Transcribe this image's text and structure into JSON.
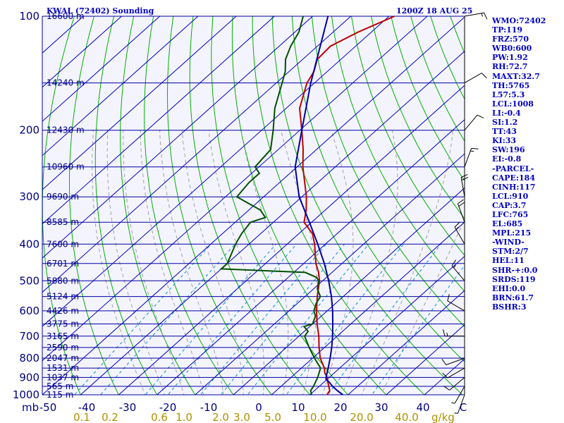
{
  "header": {
    "station": "KWAL (72402) Sounding",
    "time": "1200Z 18 AUG 25"
  },
  "indices": [
    "WMO:72402",
    "TP:119",
    "FRZ:570",
    "WB0:600",
    "PW:1.92",
    "RH:72.7",
    "MAXT:32.7",
    "TH:5765",
    "L57:5.3",
    "LCL:1008",
    "LI:-0.4",
    "SI:1.2",
    "TT:43",
    "KI:33",
    "SW:196",
    "EI:-0.8",
    "-PARCEL-",
    "CAPE:184",
    "CINH:117",
    "LCL:910",
    "CAP:3.7",
    "LFC:765",
    "EL:685",
    "MPL:215",
    "-WIND-",
    "STM:2/7",
    "HEL:11",
    "SHR-+:0.0",
    "SRDS:119",
    "EHI:0.0",
    "BRN:61.7",
    "BSHR:3"
  ],
  "colors": {
    "isobar": "#0000a0",
    "isotherm": "#0000c0",
    "dry_adiabat": "#00b000",
    "moist_adiabat": "#a0a0a0",
    "mixing_ratio": "#0090d0",
    "temperature": "#c00000",
    "dewpoint": "#005000",
    "parcel": "#0000a0",
    "text": "#000080",
    "mixing_label": "#b09000"
  },
  "chart_data": {
    "type": "line",
    "chart_kind": "skew-T log-P",
    "title": "",
    "xlabel": "",
    "ylabel": "",
    "x_unit": "C",
    "y_unit": "mb",
    "corner_label": "mb",
    "mixing_ratio_unit": "g/kg",
    "xlim": [
      -50,
      50
    ],
    "ylim": [
      1000,
      100
    ],
    "y_scale": "log",
    "grid": true,
    "pressure_ticks": [
      100,
      200,
      300,
      400,
      500,
      600,
      700,
      800,
      900,
      1000
    ],
    "temperature_ticks": [
      "-50",
      "-40",
      "-30",
      "-20",
      "-10",
      "0",
      "10",
      "20",
      "30",
      "40",
      "C"
    ],
    "mixing_ratio_labels": [
      "0.1",
      "0.2",
      "0.6",
      "1.0",
      "2.0",
      "3.0",
      "5.0",
      "10.0",
      "20.0",
      "40.0"
    ],
    "height_levels": [
      {
        "p": 100,
        "h": "16600 m"
      },
      {
        "p": 150,
        "h": "14240 m"
      },
      {
        "p": 200,
        "h": "12430 m"
      },
      {
        "p": 250,
        "h": "10960 m"
      },
      {
        "p": 300,
        "h": "9690 m"
      },
      {
        "p": 350,
        "h": "8585 m"
      },
      {
        "p": 400,
        "h": "7600 m"
      },
      {
        "p": 450,
        "h": "6701 m"
      },
      {
        "p": 500,
        "h": "5880 m"
      },
      {
        "p": 550,
        "h": "5124 m"
      },
      {
        "p": 600,
        "h": "4426 m"
      },
      {
        "p": 650,
        "h": "3775 m"
      },
      {
        "p": 700,
        "h": "3165 m"
      },
      {
        "p": 750,
        "h": "2590 m"
      },
      {
        "p": 800,
        "h": "2047 m"
      },
      {
        "p": 850,
        "h": "1531 m"
      },
      {
        "p": 900,
        "h": "1037 m"
      },
      {
        "p": 950,
        "h": "565 m"
      },
      {
        "p": 1000,
        "h": "115 m"
      }
    ],
    "series": [
      {
        "name": "",
        "role": "temperature",
        "points": [
          [
            1008,
            26.0
          ],
          [
            1000,
            24.5
          ],
          [
            975,
            24.0
          ],
          [
            950,
            22.5
          ],
          [
            925,
            21.0
          ],
          [
            900,
            19.5
          ],
          [
            875,
            17.5
          ],
          [
            850,
            16.0
          ],
          [
            800,
            12.0
          ],
          [
            750,
            8.6
          ],
          [
            700,
            5.2
          ],
          [
            650,
            1.2
          ],
          [
            600,
            -2.8
          ],
          [
            550,
            -6.8
          ],
          [
            500,
            -10.8
          ],
          [
            475,
            -13.5
          ],
          [
            450,
            -16.8
          ],
          [
            400,
            -22.8
          ],
          [
            375,
            -26.5
          ],
          [
            350,
            -32.0
          ],
          [
            325,
            -35.0
          ],
          [
            300,
            -38.8
          ],
          [
            250,
            -48.5
          ],
          [
            225,
            -53.5
          ],
          [
            200,
            -59.5
          ],
          [
            175,
            -66.5
          ],
          [
            150,
            -72.0
          ],
          [
            140,
            -73.5
          ],
          [
            130,
            -76.2
          ],
          [
            120,
            -76.6
          ],
          [
            110,
            -73.4
          ],
          [
            100,
            -68.6
          ]
        ]
      },
      {
        "name": "",
        "role": "dewpoint",
        "points": [
          [
            1008,
            21.0
          ],
          [
            1000,
            20.5
          ],
          [
            975,
            19.0
          ],
          [
            950,
            18.5
          ],
          [
            900,
            17.0
          ],
          [
            850,
            15.0
          ],
          [
            800,
            10.5
          ],
          [
            750,
            6.0
          ],
          [
            700,
            1.5
          ],
          [
            680,
            1.0
          ],
          [
            660,
            -1.5
          ],
          [
            650,
            0.0
          ],
          [
            620,
            -1.5
          ],
          [
            600,
            -3.5
          ],
          [
            575,
            -5.0
          ],
          [
            550,
            -6.0
          ],
          [
            525,
            -9.0
          ],
          [
            500,
            -11.0
          ],
          [
            490,
            -12.5
          ],
          [
            475,
            -17.0
          ],
          [
            465,
            -40.0
          ],
          [
            450,
            -40.0
          ],
          [
            400,
            -43.5
          ],
          [
            375,
            -45.0
          ],
          [
            350,
            -46.0
          ],
          [
            340,
            -43.5
          ],
          [
            325,
            -47.0
          ],
          [
            300,
            -57.0
          ],
          [
            275,
            -58.0
          ],
          [
            260,
            -58.0
          ],
          [
            250,
            -61.0
          ],
          [
            225,
            -62.0
          ],
          [
            200,
            -67.0
          ],
          [
            175,
            -73.0
          ],
          [
            150,
            -78.5
          ],
          [
            140,
            -81.0
          ],
          [
            130,
            -84.5
          ],
          [
            120,
            -87.0
          ],
          [
            110,
            -89.0
          ],
          [
            100,
            -92.5
          ]
        ]
      },
      {
        "name": "",
        "role": "parcel",
        "points": [
          [
            1008,
            29.5
          ],
          [
            975,
            26.0
          ],
          [
            950,
            23.5
          ],
          [
            925,
            21.3
          ],
          [
            910,
            19.7
          ],
          [
            900,
            19.2
          ],
          [
            850,
            17.0
          ],
          [
            800,
            14.6
          ],
          [
            750,
            11.9
          ],
          [
            700,
            8.8
          ],
          [
            650,
            5.3
          ],
          [
            600,
            1.4
          ],
          [
            550,
            -3.1
          ],
          [
            500,
            -8.4
          ],
          [
            450,
            -14.6
          ],
          [
            400,
            -22.0
          ],
          [
            350,
            -30.6
          ],
          [
            300,
            -40.7
          ],
          [
            250,
            -50.5
          ],
          [
            200,
            -59.5
          ],
          [
            150,
            -71.0
          ],
          [
            100,
            -86.0
          ]
        ]
      }
    ],
    "wind_barbs": [
      {
        "p": 1000,
        "dir": 200,
        "spd": 5
      },
      {
        "p": 950,
        "dir": 210,
        "spd": 5
      },
      {
        "p": 900,
        "dir": 230,
        "spd": 10
      },
      {
        "p": 850,
        "dir": 240,
        "spd": 10
      },
      {
        "p": 800,
        "dir": 250,
        "spd": 10
      },
      {
        "p": 700,
        "dir": 270,
        "spd": 15
      },
      {
        "p": 600,
        "dir": 300,
        "spd": 10
      },
      {
        "p": 500,
        "dir": 320,
        "spd": 15
      },
      {
        "p": 400,
        "dir": 330,
        "spd": 15
      },
      {
        "p": 350,
        "dir": 340,
        "spd": 20
      },
      {
        "p": 300,
        "dir": 350,
        "spd": 20
      },
      {
        "p": 250,
        "dir": 20,
        "spd": 15
      },
      {
        "p": 200,
        "dir": 40,
        "spd": 10
      },
      {
        "p": 150,
        "dir": 60,
        "spd": 10
      },
      {
        "p": 100,
        "dir": 80,
        "spd": 15
      }
    ]
  }
}
